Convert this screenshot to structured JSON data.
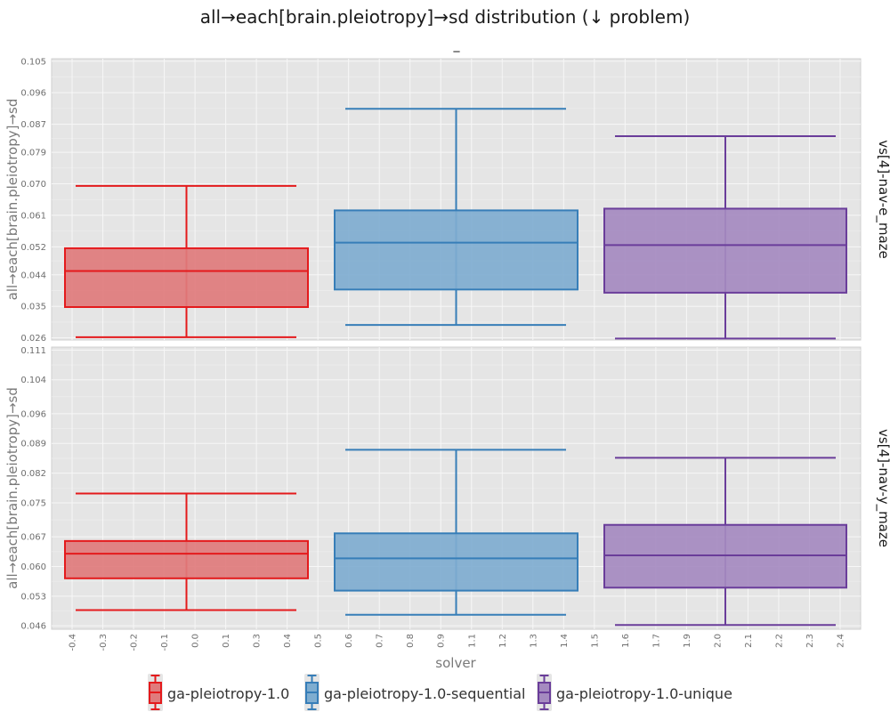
{
  "chart_data": {
    "type": "box",
    "title": "all→each[brain.pleiotropy]→sd distribution (↓ problem)",
    "subtitle": "_",
    "xlabel": "solver",
    "ylabel": "all→each[brain.pleiotropy]→sd",
    "x_ticks": [
      "-0.4",
      "-0.3",
      "-0.2",
      "-0.1",
      "0.0",
      "0.1",
      "0.3",
      "0.4",
      "0.5",
      "0.6",
      "0.7",
      "0.8",
      "0.9",
      "1.1",
      "1.2",
      "1.3",
      "1.4",
      "1.5",
      "1.6",
      "1.7",
      "1.9",
      "2.0",
      "2.1",
      "2.2",
      "2.3",
      "2.4"
    ],
    "legend_position": "bottom",
    "grid": true,
    "series": [
      {
        "name": "ga-pleiotropy-1.0",
        "color": "#e41a1c",
        "fill": "#e07b7c"
      },
      {
        "name": "ga-pleiotropy-1.0-sequential",
        "color": "#377eb8",
        "fill": "#7fadd0"
      },
      {
        "name": "ga-pleiotropy-1.0-unique",
        "color": "#6a3d9a",
        "fill": "#a58ac0"
      }
    ],
    "panels": [
      {
        "label": "vs[4]-nav-e_maze",
        "y_ticks": [
          "0.026",
          "0.035",
          "0.044",
          "0.052",
          "0.061",
          "0.070",
          "0.079",
          "0.087",
          "0.096",
          "0.105"
        ],
        "ylim": [
          0.0254,
          0.1057
        ],
        "boxes": [
          {
            "series": "ga-pleiotropy-1.0",
            "whisker_low": 0.0262,
            "q1": 0.0348,
            "median": 0.0451,
            "q3": 0.0516,
            "whisker_high": 0.0694
          },
          {
            "series": "ga-pleiotropy-1.0-sequential",
            "whisker_low": 0.0297,
            "q1": 0.0398,
            "median": 0.0532,
            "q3": 0.0624,
            "whisker_high": 0.0914
          },
          {
            "series": "ga-pleiotropy-1.0-unique",
            "whisker_low": 0.0258,
            "q1": 0.0389,
            "median": 0.0525,
            "q3": 0.0629,
            "whisker_high": 0.0836
          }
        ]
      },
      {
        "label": "vs[4]-nav-y_maze",
        "y_ticks": [
          "0.046",
          "0.053",
          "0.060",
          "0.067",
          "0.075",
          "0.082",
          "0.089",
          "0.096",
          "0.104",
          "0.111"
        ],
        "ylim": [
          0.0452,
          0.1117
        ],
        "boxes": [
          {
            "series": "ga-pleiotropy-1.0",
            "whisker_low": 0.0497,
            "q1": 0.0572,
            "median": 0.063,
            "q3": 0.066,
            "whisker_high": 0.0772
          },
          {
            "series": "ga-pleiotropy-1.0-sequential",
            "whisker_low": 0.0486,
            "q1": 0.0543,
            "median": 0.0619,
            "q3": 0.0678,
            "whisker_high": 0.0875
          },
          {
            "series": "ga-pleiotropy-1.0-unique",
            "whisker_low": 0.0462,
            "q1": 0.055,
            "median": 0.0626,
            "q3": 0.0698,
            "whisker_high": 0.0856
          }
        ]
      }
    ]
  }
}
